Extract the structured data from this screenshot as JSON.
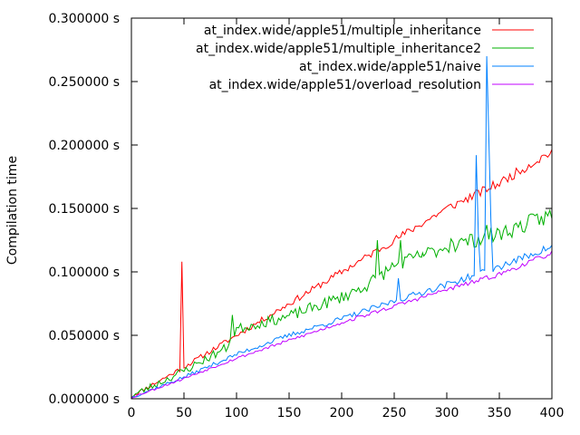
{
  "chart_data": {
    "type": "line",
    "title": "",
    "xlabel": "",
    "ylabel": "Compilation time",
    "xlim": [
      0,
      400
    ],
    "ylim": [
      0.0,
      0.3
    ],
    "x_ticks": [
      0,
      50,
      100,
      150,
      200,
      250,
      300,
      350,
      400
    ],
    "y_ticks": [
      0.0,
      0.05,
      0.1,
      0.15,
      0.2,
      0.25,
      0.3
    ],
    "y_tick_suffix": " s",
    "y_tick_decimals": 6,
    "grid": false,
    "legend_position": "top-right",
    "sample_step": 2,
    "series": [
      {
        "name": "at_index.wide/apple51/multiple_inheritance",
        "color": "#ff0000",
        "anchors": [
          [
            0,
            0.002
          ],
          [
            50,
            0.025
          ],
          [
            100,
            0.05
          ],
          [
            150,
            0.075
          ],
          [
            200,
            0.1
          ],
          [
            250,
            0.125
          ],
          [
            300,
            0.15
          ],
          [
            350,
            0.17
          ],
          [
            400,
            0.195
          ]
        ],
        "noise": 0.004,
        "seed": 11,
        "spikes": [
          [
            48,
            0.108
          ],
          [
            49,
            0.068
          ]
        ]
      },
      {
        "name": "at_index.wide/apple51/multiple_inheritance2",
        "color": "#00b000",
        "anchors": [
          [
            0,
            0.002
          ],
          [
            50,
            0.022
          ],
          [
            90,
            0.04
          ],
          [
            100,
            0.055
          ],
          [
            150,
            0.065
          ],
          [
            200,
            0.08
          ],
          [
            225,
            0.09
          ],
          [
            250,
            0.105
          ],
          [
            300,
            0.12
          ],
          [
            350,
            0.13
          ],
          [
            400,
            0.145
          ]
        ],
        "noise": 0.007,
        "seed": 23,
        "spikes": [
          [
            96,
            0.066
          ],
          [
            234,
            0.125
          ],
          [
            256,
            0.125
          ],
          [
            277,
            0.115
          ],
          [
            304,
            0.126
          ],
          [
            318,
            0.126
          ],
          [
            338,
            0.137
          ]
        ]
      },
      {
        "name": "at_index.wide/apple51/naive",
        "color": "#0080ff",
        "anchors": [
          [
            0,
            0.001
          ],
          [
            50,
            0.017
          ],
          [
            100,
            0.035
          ],
          [
            150,
            0.05
          ],
          [
            200,
            0.063
          ],
          [
            250,
            0.077
          ],
          [
            300,
            0.09
          ],
          [
            350,
            0.104
          ],
          [
            400,
            0.12
          ]
        ],
        "noise": 0.003,
        "seed": 37,
        "spikes": [
          [
            254,
            0.095
          ],
          [
            328,
            0.192
          ],
          [
            330,
            0.13
          ],
          [
            338,
            0.27
          ],
          [
            340,
            0.206
          ],
          [
            342,
            0.14
          ]
        ]
      },
      {
        "name": "at_index.wide/apple51/overload_resolution",
        "color": "#c000ff",
        "anchors": [
          [
            0,
            0.001
          ],
          [
            50,
            0.016
          ],
          [
            100,
            0.032
          ],
          [
            150,
            0.046
          ],
          [
            200,
            0.06
          ],
          [
            250,
            0.073
          ],
          [
            300,
            0.086
          ],
          [
            350,
            0.098
          ],
          [
            400,
            0.115
          ]
        ],
        "noise": 0.002,
        "seed": 53,
        "spikes": []
      }
    ]
  }
}
